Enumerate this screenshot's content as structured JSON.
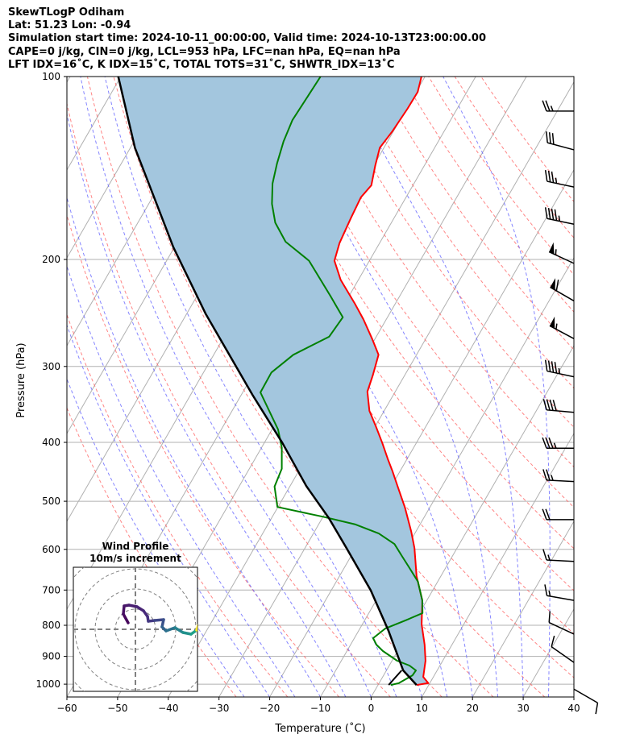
{
  "header": {
    "title": "SkewTLogP Odiham",
    "location": "Lat: 51.23   Lon: -0.94",
    "times": "Simulation start time: 2024-10-11_00:00:00, Valid time: 2024-10-13T23:00:00.00",
    "indices1": "CAPE=0 j/kg, CIN=0 j/kg, LCL=953 hPa, LFC=nan hPa, EQ=nan hPa",
    "indices2": "LFT IDX=16˚C, K IDX=15˚C, TOTAL TOTS=31˚C, SHWTR_IDX=13˚C"
  },
  "chart_data": {
    "type": "line",
    "subtype": "skew-t log-p",
    "xlabel": "Temperature (˚C)",
    "ylabel": "Pressure (hPa)",
    "xlim": [
      -60,
      40
    ],
    "ylim": [
      1050,
      100
    ],
    "xticks": [
      "−60",
      "−50",
      "−40",
      "−30",
      "−20",
      "−10",
      "0",
      "10",
      "20",
      "30",
      "40"
    ],
    "xtick_values": [
      -60,
      -50,
      -40,
      -30,
      -20,
      -10,
      0,
      10,
      20,
      30,
      40
    ],
    "yticks": [
      "100",
      "200",
      "300",
      "400",
      "500",
      "600",
      "700",
      "800",
      "900",
      "1000"
    ],
    "ytick_values": [
      100,
      200,
      300,
      400,
      500,
      600,
      700,
      800,
      900,
      1000
    ],
    "grid": true,
    "colors": {
      "temperature": "#ff0000",
      "dewpoint": "#008000",
      "parcel": "#000000",
      "fill": "#a3c6de",
      "isotherm": "#b0b0b0",
      "dry_adiabat": "#ff6666",
      "moist_adiabat": "#6666ff"
    },
    "temperature": {
      "p": [
        1003,
        996,
        973,
        915,
        861,
        797,
        728,
        664,
        597,
        561,
        512,
        475,
        446,
        426,
        401,
        377,
        355,
        330,
        310,
        287,
        270,
        251,
        236,
        216,
        201,
        188,
        171,
        158,
        151,
        140,
        131,
        123,
        113,
        106,
        100
      ],
      "t": [
        7.6,
        9.7,
        8.0,
        6.6,
        4.6,
        1.7,
        -0.9,
        -4.8,
        -8.4,
        -10.9,
        -14.9,
        -18.5,
        -21.5,
        -23.8,
        -26.7,
        -29.8,
        -32.9,
        -35.5,
        -36.3,
        -37.5,
        -40.6,
        -44.5,
        -48.1,
        -53.5,
        -56.9,
        -57.9,
        -58.5,
        -58.9,
        -58.2,
        -59.7,
        -60.8,
        -60.2,
        -59.8,
        -59.7,
        -60.7
      ]
    },
    "dewpoint": {
      "p": [
        1003,
        996,
        967,
        949,
        932,
        915,
        882,
        861,
        840,
        810,
        785,
        764,
        728,
        678,
        644,
        615,
        588,
        565,
        546,
        530,
        511,
        473,
        442,
        408,
        381,
        331,
        307,
        287,
        268,
        249,
        230,
        201,
        187,
        174,
        162,
        150,
        139,
        128,
        118,
        100
      ],
      "t": [
        2.5,
        3.9,
        5.7,
        5.8,
        4.0,
        1.0,
        -2.9,
        -4.9,
        -6.3,
        -5.0,
        -1.9,
        0.6,
        -0.9,
        -3.9,
        -7.1,
        -10.0,
        -12.8,
        -17.1,
        -22.7,
        -30.1,
        -40.1,
        -43.0,
        -43.6,
        -46.0,
        -48.8,
        -56.5,
        -56.6,
        -54.3,
        -49.3,
        -48.8,
        -53.6,
        -61.9,
        -68.7,
        -72.9,
        -75.7,
        -77.9,
        -79.3,
        -80.5,
        -81.2,
        -80.6
      ]
    },
    "parcel": {
      "p": [
        1003,
        949,
        817,
        701,
        597,
        533,
        472,
        401,
        334,
        246,
        191,
        131,
        100
      ],
      "t": [
        7.6,
        3.3,
        -4.1,
        -12.2,
        -21.8,
        -28.7,
        -36.8,
        -46.4,
        -57.8,
        -76.2,
        -90.2,
        -109.1,
        -120.5
      ]
    },
    "parcel_stub": {
      "p": [
        949,
        1003
      ],
      "t": [
        3.0,
        2.1
      ]
    },
    "wind_barbs": {
      "p": [
        114,
        132,
        152,
        175,
        203,
        234,
        270,
        312,
        357,
        409,
        464,
        536,
        628,
        728,
        827,
        921,
        1019
      ],
      "speed_kt": [
        25,
        30,
        35,
        45,
        55,
        60,
        55,
        45,
        40,
        35,
        25,
        20,
        15,
        15,
        10,
        10,
        10
      ],
      "direction": [
        270,
        285,
        282,
        282,
        295,
        300,
        298,
        282,
        275,
        270,
        273,
        270,
        273,
        280,
        295,
        305,
        120
      ]
    },
    "hodograph": {
      "title": "Wind Profile",
      "subtitle": "10m/s increment",
      "ring_increment_ms": 10,
      "u": [
        -3.6,
        -6,
        -5.6,
        -3.2,
        0.8,
        4,
        6,
        6.4,
        9.6,
        14,
        13.2,
        15.2,
        19.6,
        23.6,
        27.6,
        30.4,
        32.8
      ],
      "v": [
        3.2,
        7.6,
        11.6,
        12,
        11.2,
        9.2,
        6.4,
        4,
        4.4,
        4.8,
        1.2,
        -0.8,
        0.8,
        -1.6,
        -2.4,
        -0.4,
        6.4
      ]
    }
  }
}
